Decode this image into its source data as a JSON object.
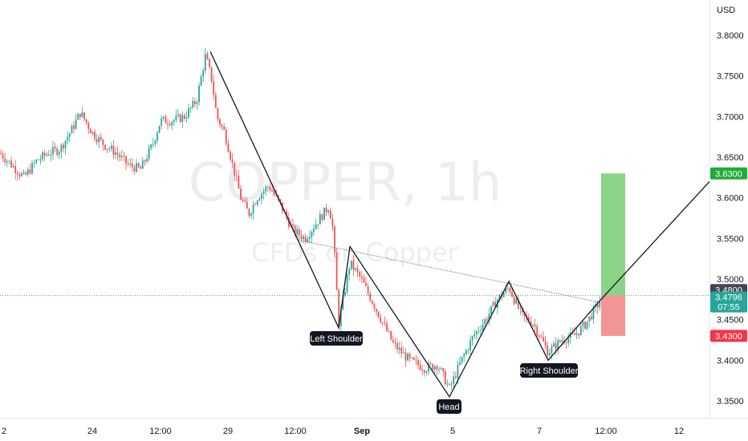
{
  "chart_data": {
    "type": "candlestick",
    "watermark_symbol": "COPPER, 1h",
    "watermark_desc": "CFDs on Copper",
    "currency": "USD",
    "y_ticks": [
      "3.8000",
      "3.7500",
      "3.7000",
      "3.6500",
      "3.6000",
      "3.5500",
      "3.5000",
      "3.4500",
      "3.4000",
      "3.3500"
    ],
    "x_ticks": [
      "2",
      "24",
      "12:00",
      "29",
      "12:00",
      "Sep",
      "5",
      "7",
      "12:00",
      "12"
    ],
    "ylim": [
      3.33,
      3.83
    ],
    "price_tags": {
      "target": {
        "label": "3.6300",
        "value": 3.63
      },
      "entry": {
        "label": "3.4800",
        "value": 3.48
      },
      "last": {
        "label": "3.4796",
        "value": 3.4796,
        "countdown": "07:55"
      },
      "stop": {
        "label": "3.4300",
        "value": 3.43
      }
    },
    "annotations": [
      "Left Shoulder",
      "Head",
      "Right Shoulder"
    ],
    "pattern_points": [
      {
        "name": "peak",
        "value": 3.78
      },
      {
        "name": "left-shoulder",
        "value": 3.44
      },
      {
        "name": "neck-left",
        "value": 3.54
      },
      {
        "name": "head",
        "value": 3.355
      },
      {
        "name": "neck-right",
        "value": 3.497
      },
      {
        "name": "right-shoulder",
        "value": 3.4
      },
      {
        "name": "breakout",
        "value": 3.475
      },
      {
        "name": "projection",
        "value": 3.62
      }
    ],
    "neckline": [
      3.548,
      3.471
    ],
    "colors": {
      "up": "#26a69a",
      "down": "#ef5350",
      "target_zone": "#7ccf7c",
      "stop_zone": "#f28a8a",
      "target_tag": "#22ab39",
      "stop_tag": "#f23645",
      "entry_tag": "#434651",
      "last_tag": "#26a69a"
    },
    "candles": [
      {
        "c": 3.655
      }
    ]
  }
}
